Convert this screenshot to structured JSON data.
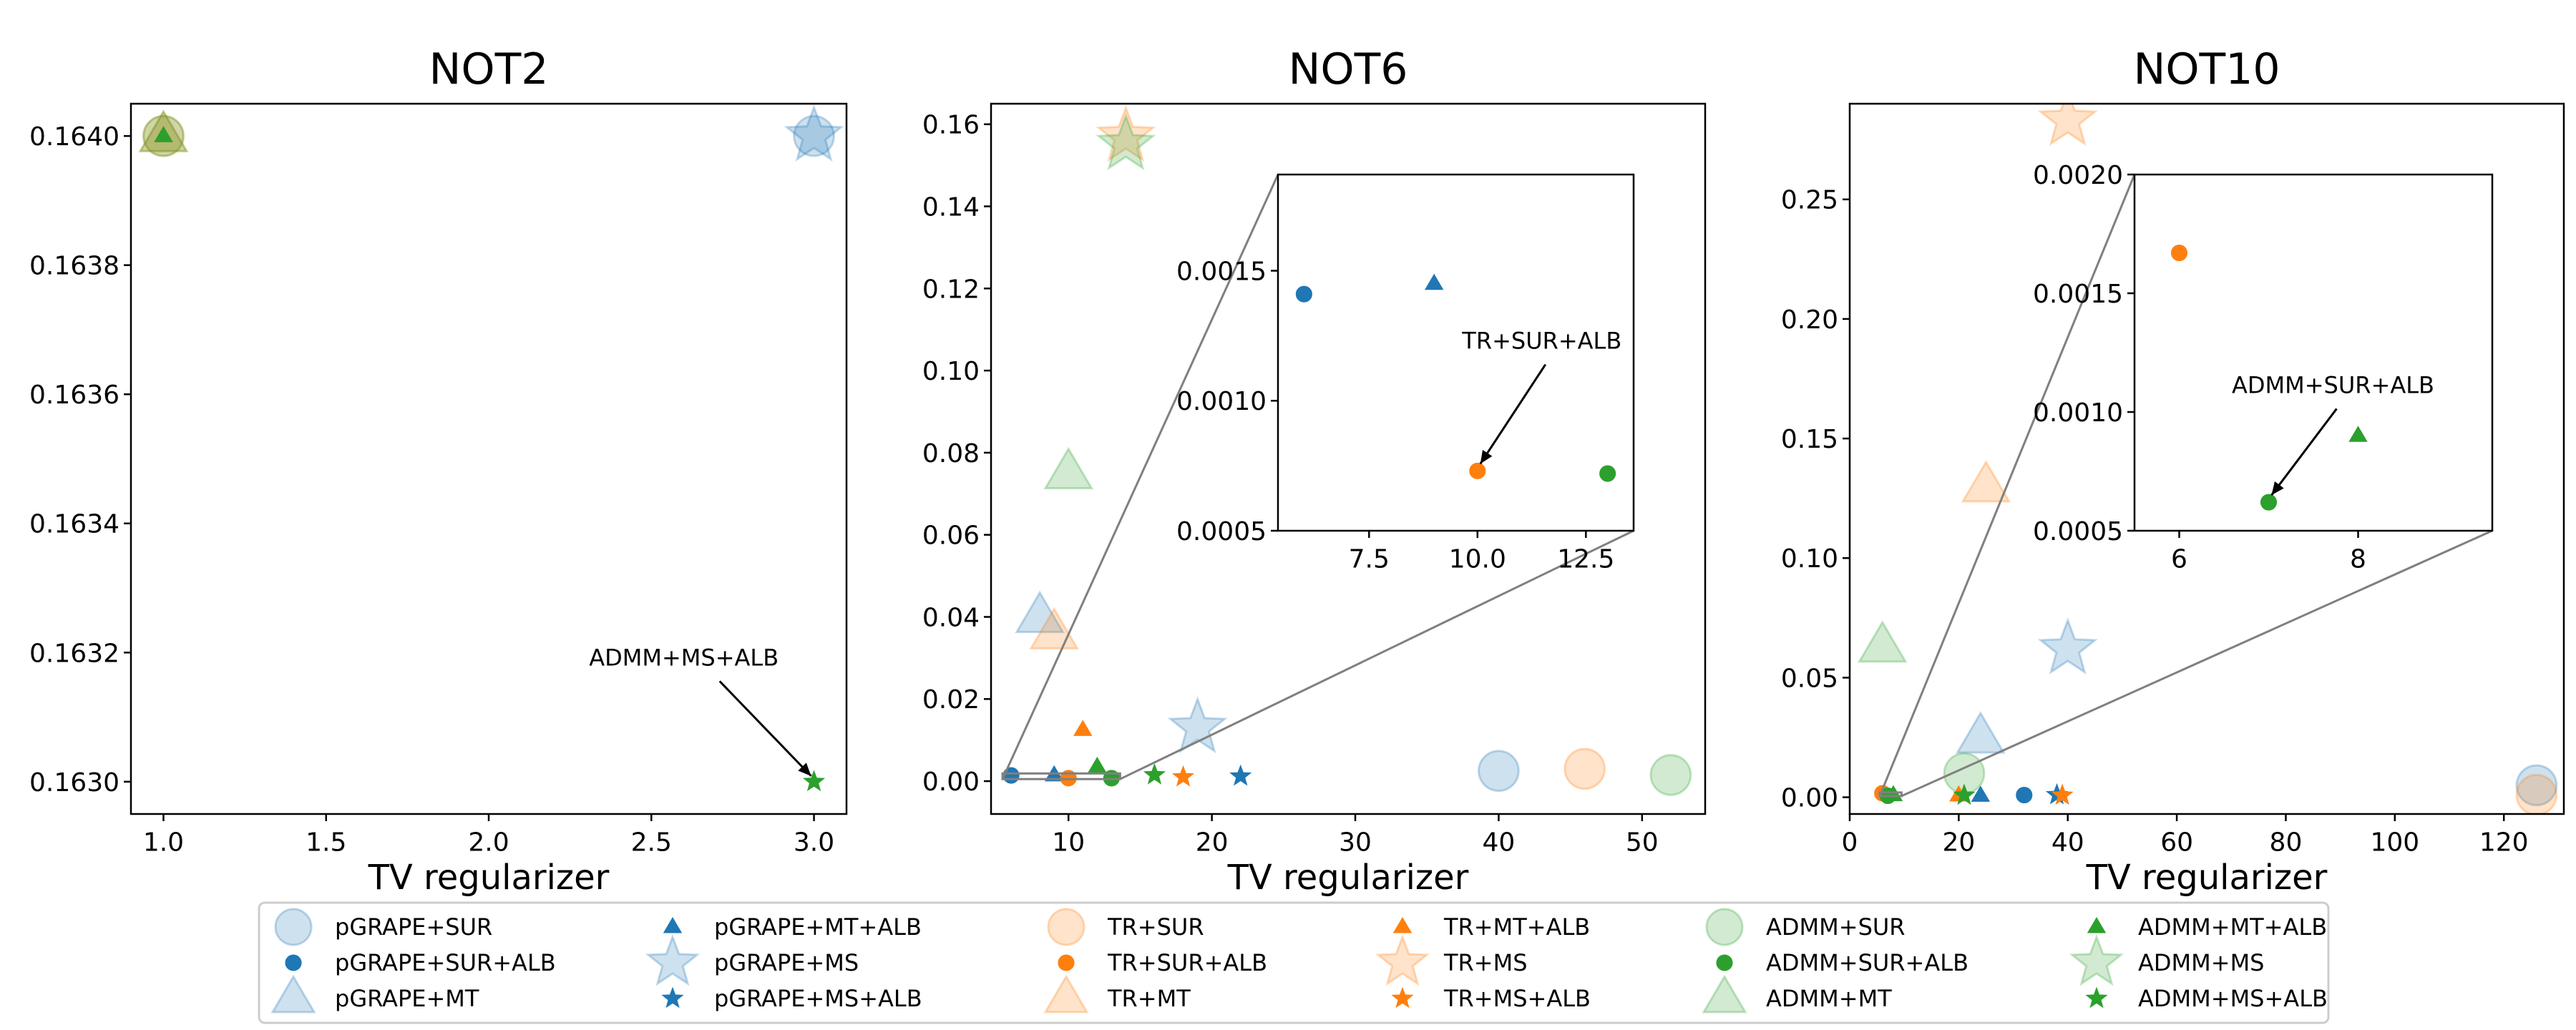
{
  "colors": {
    "pGRAPE": "#1f77b4",
    "TR": "#ff7f0e",
    "ADMM": "#2ca02c",
    "axis": "#000000",
    "connector": "#808080"
  },
  "legend": {
    "placement": "bottom",
    "entries": [
      {
        "name": "pGRAPE+SUR",
        "color": "pGRAPE",
        "marker": "circle",
        "style": "light"
      },
      {
        "name": "pGRAPE+SUR+ALB",
        "color": "pGRAPE",
        "marker": "circle",
        "style": "solid"
      },
      {
        "name": "pGRAPE+MT",
        "color": "pGRAPE",
        "marker": "triangle",
        "style": "light"
      },
      {
        "name": "pGRAPE+MT+ALB",
        "color": "pGRAPE",
        "marker": "triangle",
        "style": "solid"
      },
      {
        "name": "pGRAPE+MS",
        "color": "pGRAPE",
        "marker": "star",
        "style": "light"
      },
      {
        "name": "pGRAPE+MS+ALB",
        "color": "pGRAPE",
        "marker": "star",
        "style": "solid"
      },
      {
        "name": "TR+SUR",
        "color": "TR",
        "marker": "circle",
        "style": "light"
      },
      {
        "name": "TR+SUR+ALB",
        "color": "TR",
        "marker": "circle",
        "style": "solid"
      },
      {
        "name": "TR+MT",
        "color": "TR",
        "marker": "triangle",
        "style": "light"
      },
      {
        "name": "TR+MT+ALB",
        "color": "TR",
        "marker": "triangle",
        "style": "solid"
      },
      {
        "name": "TR+MS",
        "color": "TR",
        "marker": "star",
        "style": "light"
      },
      {
        "name": "TR+MS+ALB",
        "color": "TR",
        "marker": "star",
        "style": "solid"
      },
      {
        "name": "ADMM+SUR",
        "color": "ADMM",
        "marker": "circle",
        "style": "light"
      },
      {
        "name": "ADMM+SUR+ALB",
        "color": "ADMM",
        "marker": "circle",
        "style": "solid"
      },
      {
        "name": "ADMM+MT",
        "color": "ADMM",
        "marker": "triangle",
        "style": "light"
      },
      {
        "name": "ADMM+MT+ALB",
        "color": "ADMM",
        "marker": "triangle",
        "style": "solid"
      },
      {
        "name": "ADMM+MS",
        "color": "ADMM",
        "marker": "star",
        "style": "light"
      },
      {
        "name": "ADMM+MS+ALB",
        "color": "ADMM",
        "marker": "star",
        "style": "solid"
      }
    ]
  },
  "chart_data": [
    {
      "type": "scatter",
      "title": "NOT2",
      "xlabel": "TV regularizer",
      "ylabel": "",
      "xlim": [
        0.9,
        3.1
      ],
      "ylim": [
        0.16295,
        0.16405
      ],
      "xticks": [
        1.0,
        1.5,
        2.0,
        2.5,
        3.0
      ],
      "xtick_labels": [
        "1.0",
        "1.5",
        "2.0",
        "2.5",
        "3.0"
      ],
      "yticks": [
        0.163,
        0.1632,
        0.1634,
        0.1636,
        0.1638,
        0.164
      ],
      "ytick_labels": [
        "0.1630",
        "0.1632",
        "0.1634",
        "0.1636",
        "0.1638",
        "0.1640"
      ],
      "points": [
        {
          "series": "TR+SUR",
          "x": 1.0,
          "y": 0.164
        },
        {
          "series": "ADMM+SUR",
          "x": 1.0,
          "y": 0.164
        },
        {
          "series": "TR+MT",
          "x": 1.0,
          "y": 0.164
        },
        {
          "series": "ADMM+MT",
          "x": 1.0,
          "y": 0.164
        },
        {
          "series": "TR+MT+ALB",
          "x": 1.0,
          "y": 0.164
        },
        {
          "series": "ADMM+MT+ALB",
          "x": 1.0,
          "y": 0.164
        },
        {
          "series": "pGRAPE+SUR",
          "x": 3.0,
          "y": 0.164
        },
        {
          "series": "pGRAPE+MS",
          "x": 3.0,
          "y": 0.164
        },
        {
          "series": "ADMM+MS+ALB",
          "x": 3.0,
          "y": 0.163
        }
      ],
      "annotations": [
        {
          "text": "ADMM+MS+ALB",
          "x": 3.0,
          "y": 0.163,
          "text_x": 2.6,
          "text_y": 0.16318
        }
      ]
    },
    {
      "type": "scatter",
      "title": "NOT6",
      "xlabel": "TV regularizer",
      "ylabel": "",
      "xlim": [
        4.6,
        54.4
      ],
      "ylim": [
        -0.008,
        0.165
      ],
      "xticks": [
        10,
        20,
        30,
        40,
        50
      ],
      "xtick_labels": [
        "10",
        "20",
        "30",
        "40",
        "50"
      ],
      "yticks": [
        0.0,
        0.02,
        0.04,
        0.06,
        0.08,
        0.1,
        0.12,
        0.14,
        0.16
      ],
      "ytick_labels": [
        "0.00",
        "0.02",
        "0.04",
        "0.06",
        "0.08",
        "0.10",
        "0.12",
        "0.14",
        "0.16"
      ],
      "points": [
        {
          "series": "TR+MS",
          "x": 14,
          "y": 0.157
        },
        {
          "series": "ADMM+MS",
          "x": 14,
          "y": 0.155
        },
        {
          "series": "ADMM+MT",
          "x": 10,
          "y": 0.075
        },
        {
          "series": "pGRAPE+MT",
          "x": 8,
          "y": 0.04
        },
        {
          "series": "TR+MT",
          "x": 9,
          "y": 0.036
        },
        {
          "series": "pGRAPE+MS",
          "x": 19,
          "y": 0.013
        },
        {
          "series": "TR+MT+ALB",
          "x": 11,
          "y": 0.0125
        },
        {
          "series": "ADMM+MT+ALB",
          "x": 12,
          "y": 0.0035
        },
        {
          "series": "pGRAPE+SUR",
          "x": 40,
          "y": 0.0025
        },
        {
          "series": "TR+SUR",
          "x": 46,
          "y": 0.003
        },
        {
          "series": "ADMM+SUR",
          "x": 52,
          "y": 0.0015
        },
        {
          "series": "pGRAPE+SUR+ALB",
          "x": 6,
          "y": 0.0014
        },
        {
          "series": "pGRAPE+MT+ALB",
          "x": 9,
          "y": 0.00145
        },
        {
          "series": "TR+SUR+ALB",
          "x": 10,
          "y": 0.00073
        },
        {
          "series": "ADMM+SUR+ALB",
          "x": 13,
          "y": 0.00072
        },
        {
          "series": "ADMM+MS+ALB",
          "x": 16,
          "y": 0.0015
        },
        {
          "series": "TR+MS+ALB",
          "x": 18,
          "y": 0.001
        },
        {
          "series": "pGRAPE+MS+ALB",
          "x": 22,
          "y": 0.0012
        }
      ],
      "inset": {
        "xlim": [
          5.4,
          13.6
        ],
        "ylim": [
          0.0005,
          0.00187
        ],
        "xticks": [
          7.5,
          10.0,
          12.5
        ],
        "xtick_labels": [
          "7.5",
          "10.0",
          "12.5"
        ],
        "yticks": [
          0.0005,
          0.001,
          0.0015
        ],
        "ytick_labels": [
          "0.0005",
          "0.0010",
          "0.0015"
        ],
        "zoom_region": {
          "xlim": [
            5.4,
            13.6
          ],
          "ylim": [
            0.0005,
            0.00187
          ]
        },
        "points": [
          {
            "series": "pGRAPE+SUR+ALB",
            "x": 6,
            "y": 0.00141
          },
          {
            "series": "pGRAPE+MT+ALB",
            "x": 9,
            "y": 0.00145
          },
          {
            "series": "TR+SUR+ALB",
            "x": 10,
            "y": 0.00073
          },
          {
            "series": "ADMM+SUR+ALB",
            "x": 13,
            "y": 0.00072
          }
        ],
        "annotations": [
          {
            "text": "TR+SUR+ALB",
            "x": 10,
            "y": 0.00073,
            "text_x": 10.0,
            "text_y": 0.0012
          }
        ]
      }
    },
    {
      "type": "scatter",
      "title": "NOT10",
      "xlabel": "TV regularizer",
      "ylabel": "",
      "xlim": [
        0,
        131
      ],
      "ylim": [
        -0.007,
        0.29
      ],
      "xticks": [
        0,
        20,
        40,
        60,
        80,
        100,
        120
      ],
      "xtick_labels": [
        "0",
        "20",
        "40",
        "60",
        "80",
        "100",
        "120"
      ],
      "yticks": [
        0.0,
        0.05,
        0.1,
        0.15,
        0.2,
        0.25
      ],
      "ytick_labels": [
        "0.00",
        "0.05",
        "0.10",
        "0.15",
        "0.20",
        "0.25"
      ],
      "points": [
        {
          "series": "TR+MS",
          "x": 40,
          "y": 0.283
        },
        {
          "series": "TR+MT",
          "x": 25,
          "y": 0.13
        },
        {
          "series": "ADMM+MT",
          "x": 6,
          "y": 0.063
        },
        {
          "series": "pGRAPE+MS",
          "x": 40,
          "y": 0.062
        },
        {
          "series": "pGRAPE+MT",
          "x": 24,
          "y": 0.025
        },
        {
          "series": "ADMM+SUR",
          "x": 21,
          "y": 0.01
        },
        {
          "series": "pGRAPE+SUR",
          "x": 126,
          "y": 0.005
        },
        {
          "series": "TR+SUR",
          "x": 126,
          "y": 0.001
        },
        {
          "series": "TR+SUR+ALB",
          "x": 6,
          "y": 0.00167
        },
        {
          "series": "ADMM+SUR+ALB",
          "x": 7,
          "y": 0.00062
        },
        {
          "series": "ADMM+MT+ALB",
          "x": 8,
          "y": 0.0009
        },
        {
          "series": "TR+MT+ALB",
          "x": 20,
          "y": 0.0008
        },
        {
          "series": "ADMM+MS+ALB",
          "x": 21,
          "y": 0.0008
        },
        {
          "series": "pGRAPE+MT+ALB",
          "x": 24,
          "y": 0.0007
        },
        {
          "series": "pGRAPE+SUR+ALB",
          "x": 32,
          "y": 0.0009
        },
        {
          "series": "pGRAPE+MS+ALB",
          "x": 38,
          "y": 0.001
        },
        {
          "series": "TR+MS+ALB",
          "x": 39,
          "y": 0.0008
        }
      ],
      "inset": {
        "xlim": [
          5.5,
          9.5
        ],
        "ylim": [
          0.0005,
          0.002
        ],
        "xticks": [
          6,
          8
        ],
        "xtick_labels": [
          "6",
          "8"
        ],
        "yticks": [
          0.0005,
          0.001,
          0.0015,
          0.002
        ],
        "ytick_labels": [
          "0.0005",
          "0.0010",
          "0.0015",
          "0.0020"
        ],
        "zoom_region": {
          "xlim": [
            5.5,
            9.5
          ],
          "ylim": [
            0.0005,
            0.002
          ]
        },
        "points": [
          {
            "series": "TR+SUR+ALB",
            "x": 6,
            "y": 0.00167
          },
          {
            "series": "ADMM+SUR+ALB",
            "x": 7,
            "y": 0.00062
          },
          {
            "series": "ADMM+MT+ALB",
            "x": 8,
            "y": 0.0009
          }
        ],
        "annotations": [
          {
            "text": "ADMM+SUR+ALB",
            "x": 7,
            "y": 0.00062,
            "text_x": 7.0,
            "text_y": 0.00108
          }
        ]
      }
    }
  ]
}
